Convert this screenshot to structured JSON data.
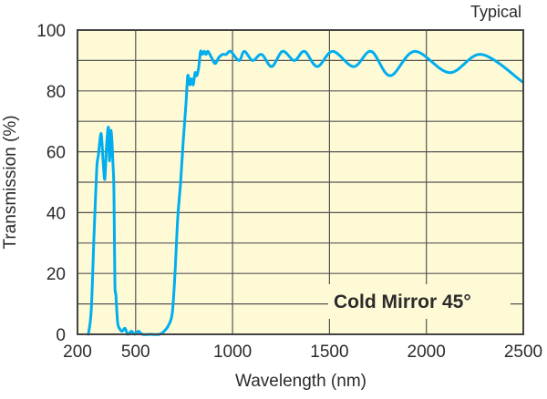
{
  "chart_data": {
    "type": "line",
    "title": "",
    "corner_note": "Typical",
    "annotation": "Cold Mirror 45°",
    "xlabel": "Wavelength (nm)",
    "ylabel": "Transmission (%)",
    "xlim": [
      200,
      2500
    ],
    "ylim": [
      0,
      100
    ],
    "x_ticks": [
      200,
      500,
      1000,
      1500,
      2000,
      2500
    ],
    "y_ticks": [
      0,
      20,
      40,
      60,
      80,
      100
    ],
    "grid": true,
    "colors": {
      "line": "#00aeef",
      "plot_bg": "#fffad6",
      "grid": "#555555",
      "text": "#2b2b2b"
    },
    "series": [
      {
        "x": [
          256,
          271,
          285,
          299,
          308,
          322,
          332,
          341,
          350,
          360,
          365,
          374,
          383,
          388,
          393,
          398,
          407,
          416,
          430,
          445,
          459,
          478,
          496,
          515,
          534,
          576,
          623,
          647,
          670,
          689,
          703,
          717,
          732,
          746,
          760,
          769,
          779,
          788,
          797,
          807,
          816,
          826,
          835,
          844,
          854,
          863,
          873,
          891,
          910,
          929,
          948,
          967,
          990,
          1033,
          1061,
          1103,
          1150,
          1202,
          1258,
          1319,
          1371,
          1437,
          1517,
          1625,
          1715,
          1813,
          1940,
          2119,
          2284,
          2495
        ],
        "y": [
          0,
          8,
          32,
          54,
          59,
          66,
          57,
          51,
          62,
          68,
          57,
          67,
          56,
          47,
          17,
          13,
          4,
          2,
          1,
          2,
          0,
          1,
          0,
          1,
          0,
          0,
          0,
          1,
          3,
          7,
          20,
          38,
          50,
          64,
          76,
          85,
          82,
          84,
          82,
          86,
          85,
          88,
          93,
          92,
          93,
          92,
          93,
          91,
          89,
          91,
          92,
          92,
          93,
          90,
          93,
          90,
          92,
          88,
          93,
          90,
          93,
          88,
          93,
          88,
          93,
          85,
          93,
          86,
          92,
          83
        ]
      }
    ]
  }
}
